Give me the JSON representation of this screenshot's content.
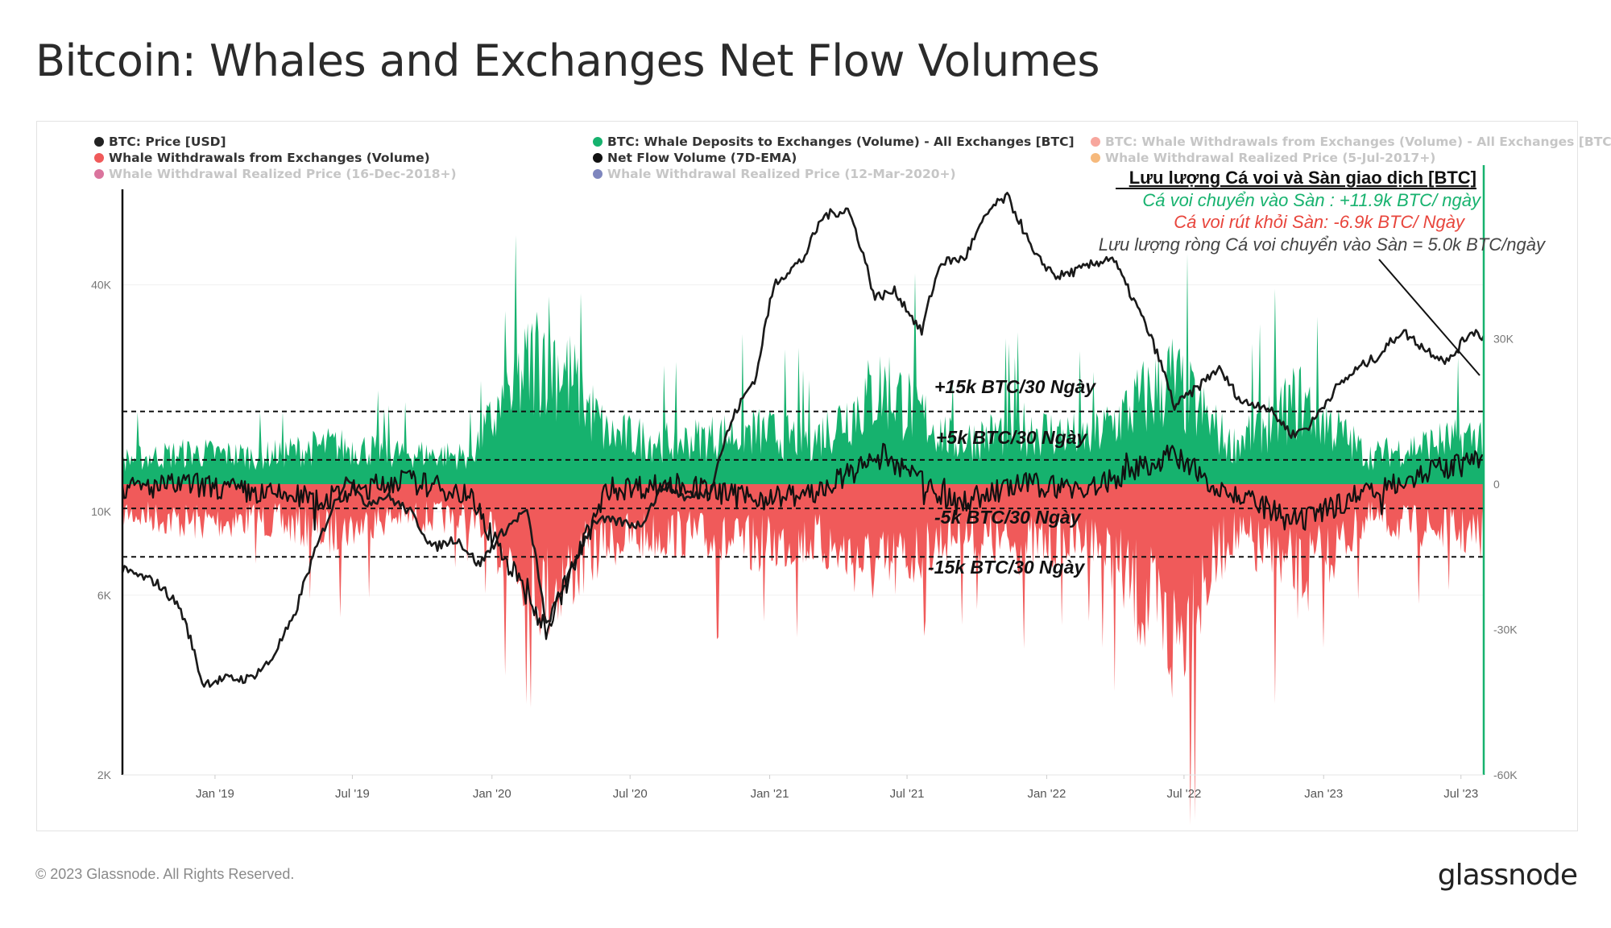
{
  "page": {
    "title": "Bitcoin: Whales and Exchanges Net Flow Volumes",
    "copyright": "© 2023 Glassnode. All Rights Reserved.",
    "brand": "glassnode"
  },
  "legend": [
    {
      "label": "BTC: Price [USD]",
      "color": "#222222",
      "active": true
    },
    {
      "label": "BTC: Whale Deposits to Exchanges (Volume) - All Exchanges [BTC]",
      "color": "#16b26e",
      "active": true
    },
    {
      "label": "BTC: Whale Withdrawals from Exchanges (Volume) - All Exchanges [BTC]",
      "color": "#f26b5b",
      "active": false
    },
    {
      "label": "Whale Withdrawals from Exchanges (Volume)",
      "color": "#f05a5a",
      "active": true
    },
    {
      "label": "Net Flow Volume (7D-EMA)",
      "color": "#111111",
      "active": true
    },
    {
      "label": "Whale Withdrawal Realized Price (5-Jul-2017+)",
      "color": "#f08a24",
      "active": false
    },
    {
      "label": "Whale Withdrawal Realized Price (16-Dec-2018+)",
      "color": "#c2185b",
      "active": false
    },
    {
      "label": "Whale Withdrawal Realized Price (12-Mar-2020+)",
      "color": "#283593",
      "active": false
    }
  ],
  "annotations": {
    "box_title": "Lưu lượng Cá voi và Sàn giao dịch [BTC]",
    "deposits_line": "Cá voi chuyển vào Sàn : +11.9k BTC/ ngày",
    "withdrawals_line": "Cá voi rút khỏi Sàn: -6.9k BTC/ Ngày",
    "net_line": "Lưu lượng ròng Cá voi chuyển vào Sàn = 5.0k BTC/ngày",
    "ref_plus15": "+15k BTC/30 Ngày",
    "ref_plus5": "+5k BTC/30 Ngày",
    "ref_minus5": "-5k BTC/30 Ngày",
    "ref_minus15": "-15k BTC/30 Ngày"
  },
  "colors": {
    "deposits": "#16b26e",
    "withdrawals": "#f05a5a",
    "price": "#1a1a1a",
    "right_axis": "#16b26e",
    "annotation_green": "#16b26e",
    "annotation_red": "#e8453c"
  },
  "chart_data": {
    "type": "area",
    "x_axis": {
      "type": "time",
      "range": [
        "2018-09-01",
        "2023-07-31"
      ],
      "tick_labels": [
        "Jan '19",
        "Jul '19",
        "Jan '20",
        "Jul '20",
        "Jan '21",
        "Jul '21",
        "Jan '22",
        "Jul '22",
        "Jan '23",
        "Jul '23"
      ]
    },
    "left_axis": {
      "scale": "log",
      "range": [
        2000,
        70000
      ],
      "tick_labels": [
        "2K",
        "6K",
        "10K",
        "40K"
      ],
      "tick_values": [
        2000,
        6000,
        10000,
        40000
      ]
    },
    "right_axis": {
      "scale": "linear",
      "range": [
        -60000,
        60000
      ],
      "tick_labels": [
        "-60K",
        "-30K",
        "0",
        "30K"
      ],
      "tick_values": [
        -60000,
        -30000,
        0,
        30000
      ]
    },
    "reference_lines": [
      15000,
      5000,
      -5000,
      -15000
    ],
    "grid": false,
    "legend_position": "top",
    "series": [
      {
        "name": "BTC: Price [USD]",
        "axis": "left",
        "style": "line",
        "x": [
          "2018-09-01",
          "2018-10-15",
          "2018-11-15",
          "2018-12-15",
          "2019-01-15",
          "2019-02-15",
          "2019-03-15",
          "2019-04-15",
          "2019-05-15",
          "2019-06-26",
          "2019-07-15",
          "2019-08-15",
          "2019-09-15",
          "2019-10-15",
          "2019-11-15",
          "2019-12-15",
          "2020-01-15",
          "2020-02-15",
          "2020-03-12",
          "2020-04-15",
          "2020-05-15",
          "2020-06-15",
          "2020-07-15",
          "2020-08-15",
          "2020-09-15",
          "2020-10-15",
          "2020-11-15",
          "2020-12-15",
          "2021-01-08",
          "2021-02-15",
          "2021-03-13",
          "2021-04-14",
          "2021-05-19",
          "2021-06-15",
          "2021-07-20",
          "2021-08-15",
          "2021-09-15",
          "2021-10-20",
          "2021-11-10",
          "2021-12-15",
          "2022-01-15",
          "2022-02-15",
          "2022-03-28",
          "2022-04-15",
          "2022-05-15",
          "2022-06-18",
          "2022-07-15",
          "2022-08-15",
          "2022-09-15",
          "2022-10-15",
          "2022-11-21",
          "2022-12-15",
          "2023-01-15",
          "2023-02-15",
          "2023-03-15",
          "2023-04-14",
          "2023-05-15",
          "2023-06-15",
          "2023-07-15",
          "2023-07-31"
        ],
        "y": [
          7000,
          6500,
          5600,
          3500,
          3600,
          3600,
          4000,
          5200,
          8000,
          12500,
          10500,
          11000,
          10000,
          8000,
          8500,
          7200,
          8800,
          10100,
          4900,
          7000,
          9500,
          9400,
          9200,
          11800,
          10800,
          11400,
          18000,
          23000,
          40500,
          47000,
          61000,
          63500,
          37000,
          38500,
          29800,
          46000,
          47000,
          64000,
          68500,
          48000,
          42000,
          44000,
          47500,
          40000,
          30000,
          19000,
          21000,
          24000,
          19500,
          19200,
          16000,
          17000,
          21000,
          24000,
          26000,
          30200,
          27000,
          25000,
          30300,
          29200
        ]
      },
      {
        "name": "BTC: Whale Deposits to Exchanges (Volume) - All Exchanges [BTC]",
        "axis": "right",
        "style": "area",
        "x": [
          "2018-09-01",
          "2018-12-01",
          "2019-03-01",
          "2019-06-01",
          "2019-09-01",
          "2019-12-01",
          "2020-03-12",
          "2020-06-01",
          "2020-09-01",
          "2020-12-01",
          "2021-03-01",
          "2021-06-01",
          "2021-09-01",
          "2021-12-01",
          "2022-03-01",
          "2022-06-13",
          "2022-09-01",
          "2022-12-01",
          "2023-03-01",
          "2023-06-01",
          "2023-07-31"
        ],
        "y": [
          7000,
          9000,
          8000,
          11000,
          9000,
          8000,
          40000,
          14000,
          12000,
          15000,
          13000,
          28000,
          12000,
          16000,
          13000,
          30000,
          11000,
          24000,
          8000,
          12000,
          14000
        ]
      },
      {
        "name": "Whale Withdrawals from Exchanges (Volume)",
        "axis": "right",
        "style": "area",
        "x": [
          "2018-09-01",
          "2018-12-01",
          "2019-03-01",
          "2019-06-01",
          "2019-09-01",
          "2019-12-01",
          "2020-03-12",
          "2020-06-01",
          "2020-09-01",
          "2020-12-01",
          "2021-03-01",
          "2021-06-01",
          "2021-09-01",
          "2021-12-01",
          "2022-03-01",
          "2022-06-18",
          "2022-09-01",
          "2022-12-01",
          "2023-03-01",
          "2023-06-01",
          "2023-07-31"
        ],
        "y": [
          -8000,
          -11000,
          -10000,
          -14000,
          -9000,
          -10000,
          -31000,
          -16000,
          -14000,
          -18000,
          -16000,
          -25000,
          -14000,
          -18000,
          -15000,
          -45000,
          -14000,
          -27000,
          -10000,
          -13000,
          -15000
        ]
      },
      {
        "name": "Net Flow Volume (7D-EMA)",
        "axis": "right",
        "style": "line",
        "x": [
          "2018-09-01",
          "2018-12-01",
          "2019-03-01",
          "2019-06-01",
          "2019-09-01",
          "2019-12-01",
          "2020-03-12",
          "2020-06-01",
          "2020-09-01",
          "2020-12-01",
          "2021-03-01",
          "2021-06-01",
          "2021-09-01",
          "2021-12-01",
          "2022-03-01",
          "2022-06-13",
          "2022-09-01",
          "2022-12-01",
          "2023-03-01",
          "2023-06-01",
          "2023-07-31"
        ],
        "y": [
          -1000,
          0,
          -2000,
          -3000,
          1000,
          -2000,
          -30000,
          -1000,
          0,
          -3000,
          -2000,
          6000,
          -4000,
          0,
          -1000,
          6000,
          -2000,
          -8000,
          -1000,
          3000,
          5000
        ]
      }
    ]
  }
}
